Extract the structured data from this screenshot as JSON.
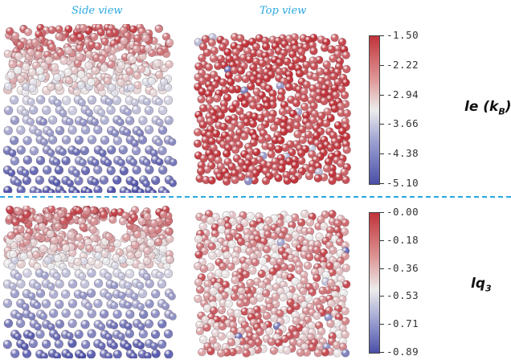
{
  "column_titles": {
    "side": "Side view",
    "top": "Top view"
  },
  "rows": [
    {
      "quantity_main": "le (k",
      "quantity_sub": "B",
      "quantity_close": ")",
      "colorbar_ticks": [
        "-1.50",
        "-2.22",
        "-2.94",
        "-3.66",
        "-4.38",
        "-5.10"
      ],
      "colors": {
        "high": "#c0333a",
        "mid": "#ececec",
        "low": "#4b4fa8"
      }
    },
    {
      "quantity_main": "lq",
      "quantity_sub": "3",
      "quantity_close": "",
      "colorbar_ticks": [
        "-0.00",
        "-0.18",
        "-0.36",
        "-0.53",
        "-0.71",
        "-0.89"
      ],
      "colors": {
        "high": "#c0333a",
        "mid": "#ececec",
        "low": "#4b4fa8"
      }
    }
  ],
  "divider_color": "#29a8e0"
}
